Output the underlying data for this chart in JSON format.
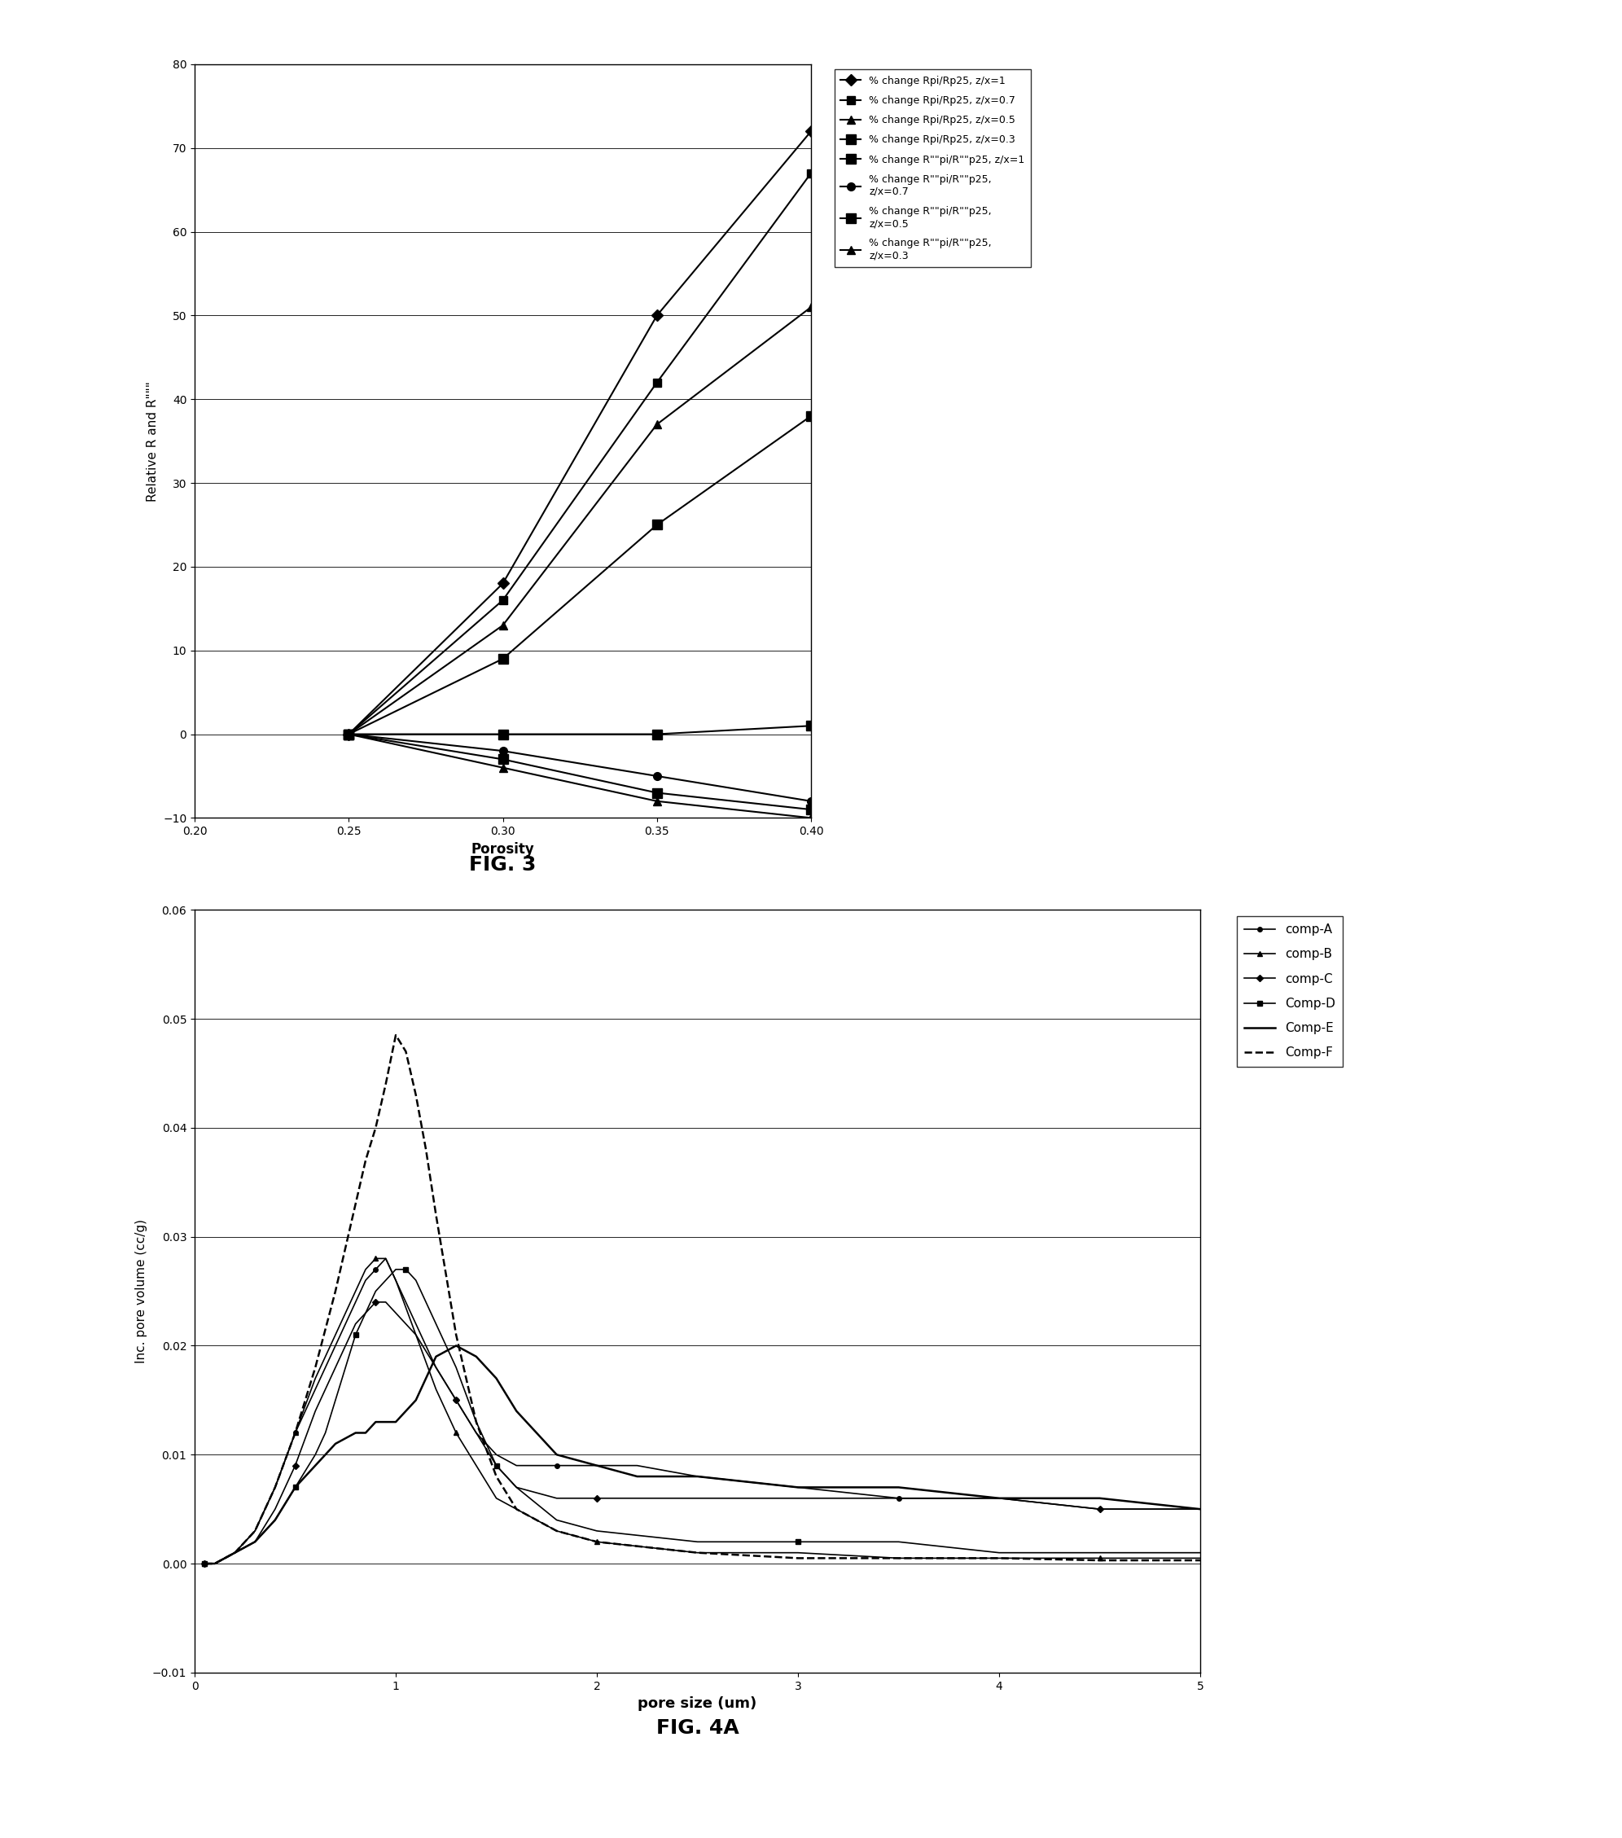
{
  "fig3": {
    "title": "FIG. 3",
    "xlabel": "Porosity",
    "ylabel": "Relative R and R\"\"\"",
    "xlim": [
      0.2,
      0.4
    ],
    "ylim": [
      -10,
      80
    ],
    "xticks": [
      0.2,
      0.25,
      0.3,
      0.35,
      0.4
    ],
    "yticks": [
      -10,
      0,
      10,
      20,
      30,
      40,
      50,
      60,
      70,
      80
    ],
    "series": [
      {
        "label": "% change Rpi/Rp25, z/x=1",
        "x": [
          0.25,
          0.3,
          0.35,
          0.4
        ],
        "y": [
          0,
          18,
          50,
          72
        ],
        "marker": "D",
        "markersize": 7,
        "linestyle": "-",
        "color": "#000000",
        "markerfacecolor": "#000000"
      },
      {
        "label": "% change Rpi/Rp25, z/x=0.7",
        "x": [
          0.25,
          0.3,
          0.35,
          0.4
        ],
        "y": [
          0,
          16,
          42,
          67
        ],
        "marker": "s",
        "markersize": 7,
        "linestyle": "-",
        "color": "#000000",
        "markerfacecolor": "#000000"
      },
      {
        "label": "% change Rpi/Rp25, z/x=0.5",
        "x": [
          0.25,
          0.3,
          0.35,
          0.4
        ],
        "y": [
          0,
          13,
          37,
          51
        ],
        "marker": "^",
        "markersize": 7,
        "linestyle": "-",
        "color": "#000000",
        "markerfacecolor": "#000000"
      },
      {
        "label": "% change Rpi/Rp25, z/x=0.3",
        "x": [
          0.25,
          0.3,
          0.35,
          0.4
        ],
        "y": [
          0,
          9,
          25,
          38
        ],
        "marker": "s",
        "markersize": 9,
        "linestyle": "-",
        "color": "#000000",
        "markerfacecolor": "#000000"
      },
      {
        "label": "% change R\"\"pi/R\"\"p25, z/x=1",
        "x": [
          0.25,
          0.3,
          0.35,
          0.4
        ],
        "y": [
          0,
          0,
          0,
          1
        ],
        "marker": "s",
        "markersize": 9,
        "linestyle": "-",
        "color": "#000000",
        "markerfacecolor": "#000000"
      },
      {
        "label": "% change R\"\"pi/R\"\"p25,\nz/x=0.7",
        "x": [
          0.25,
          0.3,
          0.35,
          0.4
        ],
        "y": [
          0,
          -2,
          -5,
          -8
        ],
        "marker": "o",
        "markersize": 7,
        "linestyle": "-",
        "color": "#000000",
        "markerfacecolor": "#000000"
      },
      {
        "label": "% change R\"\"pi/R\"\"p25,\nz/x=0.5",
        "x": [
          0.25,
          0.3,
          0.35,
          0.4
        ],
        "y": [
          0,
          -3,
          -7,
          -9
        ],
        "marker": "s",
        "markersize": 9,
        "linestyle": "-",
        "color": "#000000",
        "markerfacecolor": "#000000"
      },
      {
        "label": "% change R\"\"pi/R\"\"p25,\nz/x=0.3",
        "x": [
          0.25,
          0.3,
          0.35,
          0.4
        ],
        "y": [
          0,
          -4,
          -8,
          -10
        ],
        "marker": "^",
        "markersize": 7,
        "linestyle": "-",
        "color": "#000000",
        "markerfacecolor": "#000000"
      }
    ]
  },
  "fig4a": {
    "title": "FIG. 4A",
    "xlabel": "pore size (um)",
    "ylabel": "Inc. pore volume (cc/g)",
    "xlim": [
      0,
      5
    ],
    "ylim": [
      -0.01,
      0.06
    ],
    "xticks": [
      0,
      1,
      2,
      3,
      4,
      5
    ],
    "yticks": [
      -0.01,
      0,
      0.01,
      0.02,
      0.03,
      0.04,
      0.05,
      0.06
    ],
    "series": [
      {
        "label": "comp-A",
        "x": [
          0.05,
          0.1,
          0.2,
          0.3,
          0.4,
          0.5,
          0.6,
          0.7,
          0.8,
          0.85,
          0.9,
          0.95,
          1.0,
          1.1,
          1.2,
          1.3,
          1.4,
          1.5,
          1.6,
          1.7,
          1.8,
          2.0,
          2.2,
          2.5,
          3.0,
          3.5,
          4.0,
          4.5,
          5.0
        ],
        "y": [
          0.0,
          0.0,
          0.001,
          0.003,
          0.007,
          0.012,
          0.016,
          0.02,
          0.024,
          0.026,
          0.027,
          0.028,
          0.026,
          0.022,
          0.018,
          0.015,
          0.012,
          0.01,
          0.009,
          0.009,
          0.009,
          0.009,
          0.009,
          0.008,
          0.007,
          0.006,
          0.006,
          0.005,
          0.005
        ],
        "marker": "o",
        "markersize": 4,
        "markevery": 5,
        "linestyle": "-",
        "color": "#000000",
        "linewidth": 1.2
      },
      {
        "label": "comp-B",
        "x": [
          0.05,
          0.1,
          0.2,
          0.3,
          0.4,
          0.5,
          0.6,
          0.7,
          0.8,
          0.85,
          0.9,
          0.95,
          1.0,
          1.1,
          1.2,
          1.3,
          1.4,
          1.5,
          1.6,
          1.8,
          2.0,
          2.5,
          3.0,
          3.5,
          4.0,
          4.5,
          5.0
        ],
        "y": [
          0.0,
          0.0,
          0.001,
          0.003,
          0.007,
          0.012,
          0.017,
          0.021,
          0.025,
          0.027,
          0.028,
          0.028,
          0.026,
          0.021,
          0.016,
          0.012,
          0.009,
          0.006,
          0.005,
          0.003,
          0.002,
          0.001,
          0.001,
          0.0005,
          0.0005,
          0.0005,
          0.0005
        ],
        "marker": "^",
        "markersize": 4,
        "markevery": 5,
        "linestyle": "-",
        "color": "#000000",
        "linewidth": 1.2
      },
      {
        "label": "comp-C",
        "x": [
          0.05,
          0.1,
          0.2,
          0.3,
          0.4,
          0.5,
          0.6,
          0.7,
          0.8,
          0.85,
          0.9,
          0.95,
          1.0,
          1.1,
          1.2,
          1.3,
          1.4,
          1.5,
          1.6,
          1.8,
          2.0,
          2.5,
          3.0,
          3.5,
          4.0,
          4.5,
          5.0
        ],
        "y": [
          0.0,
          0.0,
          0.001,
          0.002,
          0.005,
          0.009,
          0.014,
          0.018,
          0.022,
          0.023,
          0.024,
          0.024,
          0.023,
          0.021,
          0.018,
          0.015,
          0.012,
          0.009,
          0.007,
          0.006,
          0.006,
          0.006,
          0.006,
          0.006,
          0.006,
          0.005,
          0.005
        ],
        "marker": "D",
        "markersize": 4,
        "markevery": 5,
        "linestyle": "-",
        "color": "#000000",
        "linewidth": 1.2
      },
      {
        "label": "Comp-D",
        "x": [
          0.05,
          0.1,
          0.2,
          0.3,
          0.4,
          0.5,
          0.6,
          0.65,
          0.7,
          0.75,
          0.8,
          0.85,
          0.9,
          0.95,
          1.0,
          1.05,
          1.1,
          1.2,
          1.3,
          1.4,
          1.5,
          1.6,
          1.8,
          2.0,
          2.5,
          3.0,
          3.5,
          4.0,
          4.5,
          5.0
        ],
        "y": [
          0.0,
          0.0,
          0.001,
          0.002,
          0.004,
          0.007,
          0.01,
          0.012,
          0.015,
          0.018,
          0.021,
          0.023,
          0.025,
          0.026,
          0.027,
          0.027,
          0.026,
          0.022,
          0.018,
          0.013,
          0.009,
          0.007,
          0.004,
          0.003,
          0.002,
          0.002,
          0.002,
          0.001,
          0.001,
          0.001
        ],
        "marker": "s",
        "markersize": 4,
        "markevery": 5,
        "linestyle": "-",
        "color": "#000000",
        "linewidth": 1.2
      },
      {
        "label": "Comp-E",
        "x": [
          0.05,
          0.1,
          0.2,
          0.3,
          0.4,
          0.5,
          0.6,
          0.7,
          0.8,
          0.85,
          0.9,
          0.95,
          1.0,
          1.05,
          1.1,
          1.15,
          1.2,
          1.3,
          1.4,
          1.5,
          1.6,
          1.7,
          1.8,
          2.0,
          2.2,
          2.5,
          3.0,
          3.5,
          4.0,
          4.5,
          5.0
        ],
        "y": [
          0.0,
          0.0,
          0.001,
          0.002,
          0.004,
          0.007,
          0.009,
          0.011,
          0.012,
          0.012,
          0.013,
          0.013,
          0.013,
          0.014,
          0.015,
          0.017,
          0.019,
          0.02,
          0.019,
          0.017,
          0.014,
          0.012,
          0.01,
          0.009,
          0.008,
          0.008,
          0.007,
          0.007,
          0.006,
          0.006,
          0.005
        ],
        "marker": null,
        "markersize": 0,
        "markevery": 1,
        "linestyle": "-",
        "color": "#000000",
        "linewidth": 1.8
      },
      {
        "label": "Comp-F",
        "x": [
          0.05,
          0.1,
          0.2,
          0.3,
          0.4,
          0.5,
          0.6,
          0.7,
          0.75,
          0.8,
          0.85,
          0.9,
          0.95,
          1.0,
          1.05,
          1.1,
          1.15,
          1.2,
          1.3,
          1.4,
          1.5,
          1.6,
          1.8,
          2.0,
          2.5,
          3.0,
          3.5,
          4.0,
          4.5,
          5.0
        ],
        "y": [
          0.0,
          0.0,
          0.001,
          0.003,
          0.007,
          0.012,
          0.018,
          0.025,
          0.029,
          0.033,
          0.037,
          0.04,
          0.044,
          0.0485,
          0.047,
          0.043,
          0.038,
          0.032,
          0.021,
          0.013,
          0.008,
          0.005,
          0.003,
          0.002,
          0.001,
          0.0005,
          0.0005,
          0.0005,
          0.0003,
          0.0003
        ],
        "marker": null,
        "markersize": 0,
        "markevery": 1,
        "linestyle": "--",
        "color": "#000000",
        "linewidth": 1.8
      }
    ]
  }
}
